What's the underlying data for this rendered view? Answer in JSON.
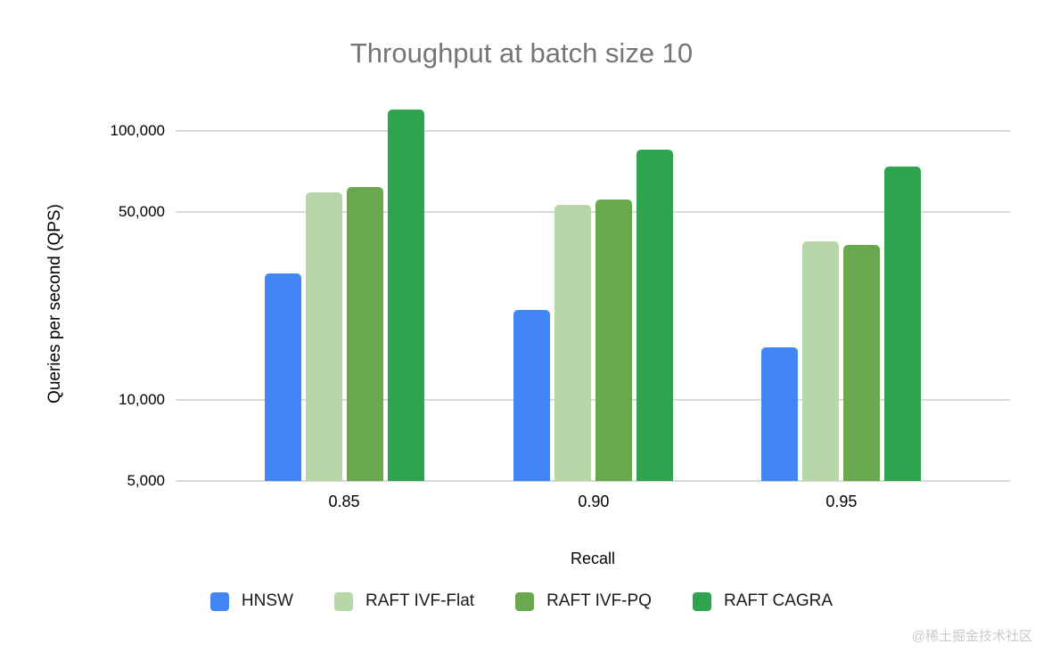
{
  "title": "Throughput at batch size 10",
  "watermark": "@稀土掘金技术社区",
  "chart_data": {
    "type": "bar",
    "title": "Throughput at batch size 10",
    "xlabel": "Recall",
    "ylabel": "Queries per second (QPS)",
    "y_scale": "log",
    "grid": true,
    "legend_position": "bottom",
    "ylim": [
      5000,
      135000
    ],
    "y_ticks": [
      {
        "value": 5000,
        "label": "5,000"
      },
      {
        "value": 10000,
        "label": "10,000"
      },
      {
        "value": 50000,
        "label": "50,000"
      },
      {
        "value": 100000,
        "label": "100,000"
      }
    ],
    "categories": [
      "0.85",
      "0.90",
      "0.95"
    ],
    "series": [
      {
        "name": "HNSW",
        "color": "#4285F4",
        "values": [
          29500,
          21600,
          15700
        ]
      },
      {
        "name": "RAFT IVF-Flat",
        "color": "#B7D7A8",
        "values": [
          59000,
          53000,
          39000
        ]
      },
      {
        "name": "RAFT IVF-PQ",
        "color": "#6AA84F",
        "values": [
          62000,
          55500,
          37800
        ]
      },
      {
        "name": "RAFT CAGRA",
        "color": "#2EA44E",
        "values": [
          120000,
          85000,
          74000
        ]
      }
    ]
  }
}
